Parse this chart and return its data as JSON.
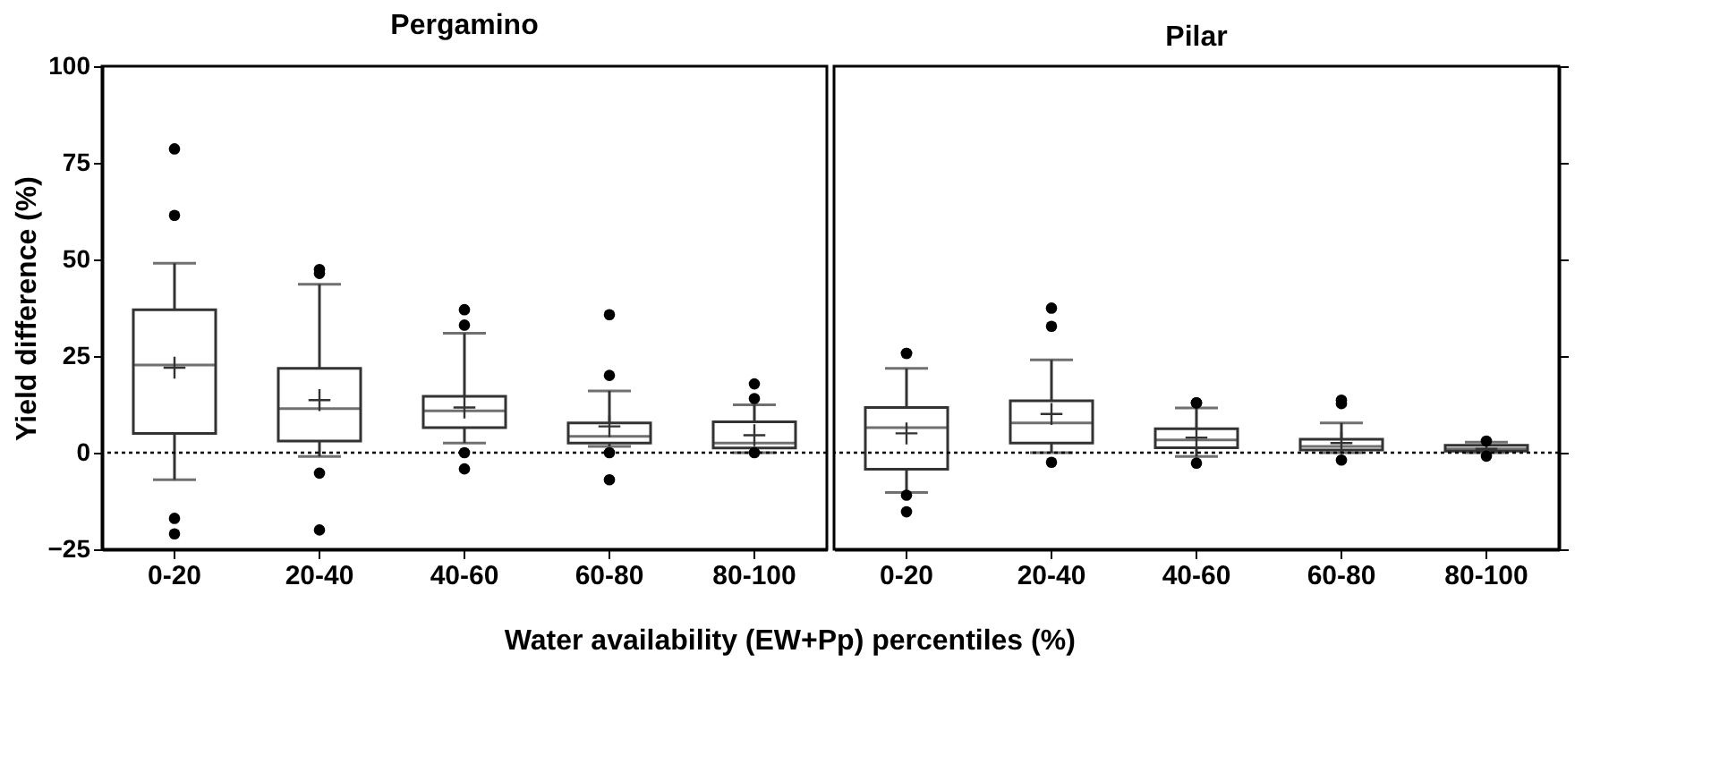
{
  "chart_data": [
    {
      "type": "box",
      "title": "Pergamino",
      "xlabel": "Water availability (EW+Pp) percentiles (%)",
      "ylabel": "Yield difference (%)",
      "categories": [
        "0-20",
        "20-40",
        "40-60",
        "60-80",
        "80-100"
      ],
      "boxes": [
        {
          "low": -7,
          "q1": 5,
          "median": 22.7,
          "q3": 37,
          "high": 49,
          "mean": 22,
          "outliers": [
            78.6,
            61.4,
            -17,
            -21
          ]
        },
        {
          "low": -1,
          "q1": 3,
          "median": 11.4,
          "q3": 21.8,
          "high": 43.6,
          "mean": 13.6,
          "outliers": [
            46.4,
            47.4,
            -5.3,
            -20
          ]
        },
        {
          "low": 2.5,
          "q1": 6.5,
          "median": 10.8,
          "q3": 14.6,
          "high": 30.9,
          "mean": 11.7,
          "outliers": [
            37,
            33,
            0,
            -4.2
          ]
        },
        {
          "low": 1.6,
          "q1": 2.5,
          "median": 4.2,
          "q3": 7.7,
          "high": 16,
          "mean": 6.8,
          "outliers": [
            35.7,
            20,
            0,
            -7
          ]
        },
        {
          "low": 0,
          "q1": 1.2,
          "median": 2.5,
          "q3": 8,
          "high": 12.4,
          "mean": 4.5,
          "outliers": [
            17.8,
            14,
            0
          ]
        }
      ],
      "ylim": [
        -25,
        100
      ],
      "yticks": [
        -25,
        0,
        25,
        50,
        75,
        100
      ],
      "ref_lines": [
        {
          "axis": "y",
          "value": 0,
          "line_style": "dotted"
        }
      ],
      "grid": false,
      "marker": "circle"
    },
    {
      "type": "box",
      "title": "Pilar",
      "categories": [
        "0-20",
        "20-40",
        "40-60",
        "60-80",
        "80-100"
      ],
      "boxes": [
        {
          "low": -10.3,
          "q1": -4.3,
          "median": 6.5,
          "q3": 11.7,
          "high": 21.8,
          "mean": 5,
          "outliers": [
            25.7,
            25.7,
            -11,
            -15.3
          ]
        },
        {
          "low": 0,
          "q1": 2.5,
          "median": 7.7,
          "q3": 13.4,
          "high": 24,
          "mean": 10,
          "outliers": [
            37.4,
            32.7,
            -2.5
          ]
        },
        {
          "low": -1,
          "q1": 1.3,
          "median": 3.3,
          "q3": 6.2,
          "high": 11.6,
          "mean": 3.9,
          "outliers": [
            12.9,
            12.9,
            -2.7
          ]
        },
        {
          "low": 0,
          "q1": 0.7,
          "median": 1.6,
          "q3": 3.5,
          "high": 7.7,
          "mean": 2.5,
          "outliers": [
            13.6,
            12.7,
            -1.9
          ]
        },
        {
          "low": 0,
          "q1": 0.4,
          "median": 1,
          "q3": 1.9,
          "high": 2.7,
          "mean": 1,
          "outliers": [
            3,
            -0.9
          ]
        }
      ],
      "ylim": [
        -25,
        100
      ],
      "yticks": [
        -25,
        0,
        25,
        50,
        75,
        100
      ],
      "ref_lines": [
        {
          "axis": "y",
          "value": 0,
          "line_style": "dotted"
        }
      ],
      "grid": false,
      "marker": "circle",
      "tick_labels": "x"
    }
  ]
}
